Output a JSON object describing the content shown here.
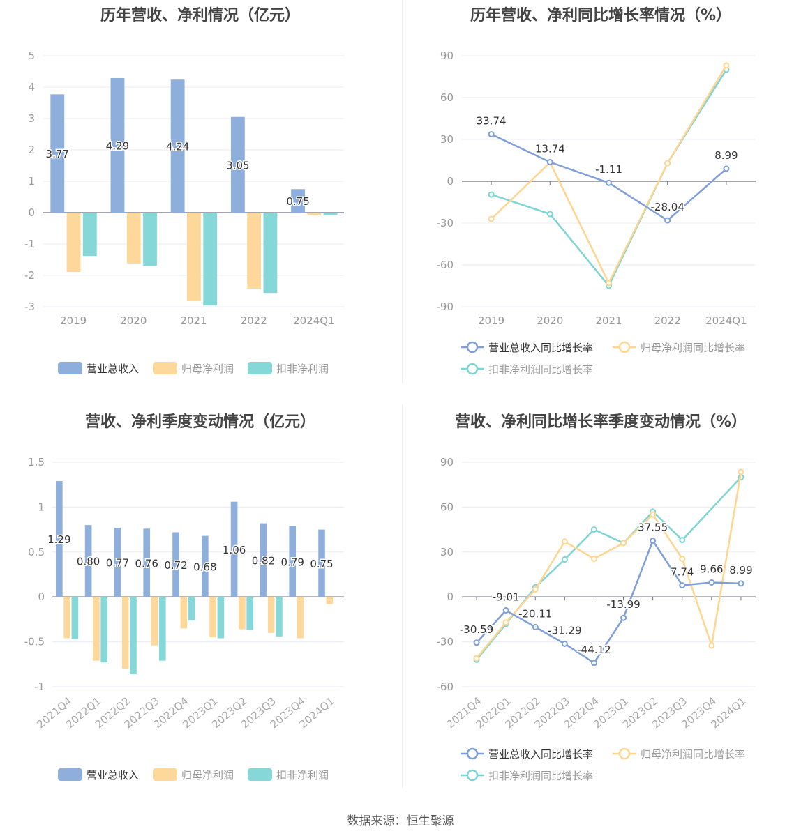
{
  "colors": {
    "revenue": "#8eaedb",
    "parent_profit": "#fdd89a",
    "deducted_profit": "#86d7d8",
    "revenue_line": "#7e9fd9",
    "parent_line": "#ffd58f",
    "deducted_line": "#7dd5d3"
  },
  "chart_data": [
    {
      "type": "bar",
      "title": "历年营收、净利情况（亿元）",
      "categories": [
        "2019",
        "2020",
        "2021",
        "2022",
        "2024Q1"
      ],
      "ylim": [
        -3,
        5
      ],
      "yticks": [
        5,
        4,
        3,
        2,
        1,
        0,
        -1,
        -2,
        -3
      ],
      "series": [
        {
          "name": "营业总收入",
          "values": [
            3.77,
            4.29,
            4.24,
            3.05,
            0.75
          ],
          "labels": [
            "3.77",
            "4.29",
            "4.24",
            "3.05",
            "0.75"
          ]
        },
        {
          "name": "归母净利润",
          "values": [
            -1.89,
            -1.62,
            -2.82,
            -2.42,
            -0.08
          ]
        },
        {
          "name": "扣非净利润",
          "values": [
            -1.38,
            -1.69,
            -2.96,
            -2.56,
            -0.08
          ]
        }
      ],
      "legend": "bottom"
    },
    {
      "type": "line",
      "title": "历年营收、净利同比增长率情况（%）",
      "categories": [
        "2019",
        "2020",
        "2021",
        "2022",
        "2024Q1"
      ],
      "ylim": [
        -90,
        90
      ],
      "yticks": [
        90,
        60,
        30,
        0,
        -30,
        -60,
        -90
      ],
      "series": [
        {
          "name": "营业总收入同比增长率",
          "values": [
            33.74,
            13.74,
            -1.11,
            -28.04,
            8.99
          ],
          "labels": [
            "33.74",
            "13.74",
            "-1.11",
            "-28.04",
            "8.99"
          ]
        },
        {
          "name": "归母净利润同比增长率",
          "values": [
            -27,
            13.5,
            -73,
            13,
            83
          ]
        },
        {
          "name": "扣非净利润同比增长率",
          "values": [
            -9.5,
            -23.5,
            -75,
            13,
            80
          ]
        }
      ],
      "legend": "bottom"
    },
    {
      "type": "bar",
      "title": "营收、净利季度变动情况（亿元）",
      "categories": [
        "2021Q4",
        "2022Q1",
        "2022Q2",
        "2022Q3",
        "2022Q4",
        "2023Q1",
        "2023Q2",
        "2023Q3",
        "2023Q4",
        "2024Q1"
      ],
      "ylim": [
        -1,
        1.5
      ],
      "yticks": [
        "1.5",
        "1",
        "0.5",
        "0",
        "-0.5",
        "-1"
      ],
      "series": [
        {
          "name": "营业总收入",
          "values": [
            1.29,
            0.8,
            0.77,
            0.76,
            0.72,
            0.68,
            1.06,
            0.82,
            0.79,
            0.75
          ],
          "labels": [
            "1.29",
            "0.80",
            "0.77",
            "0.76",
            "0.72",
            "0.68",
            "1.06",
            "0.82",
            "0.79",
            "0.75"
          ]
        },
        {
          "name": "归母净利润",
          "values": [
            -0.46,
            -0.71,
            -0.8,
            -0.54,
            -0.35,
            -0.45,
            -0.36,
            -0.4,
            -0.46,
            -0.08
          ]
        },
        {
          "name": "扣非净利润",
          "values": [
            -0.47,
            -0.73,
            -0.86,
            -0.71,
            -0.26,
            -0.46,
            -0.37,
            -0.44,
            null,
            null
          ]
        }
      ],
      "legend": "bottom"
    },
    {
      "type": "line",
      "title": "营收、净利同比增长率季度变动情况（%）",
      "categories": [
        "2021Q4",
        "2022Q1",
        "2022Q2",
        "2022Q3",
        "2022Q4",
        "2023Q1",
        "2023Q2",
        "2023Q3",
        "2023Q4",
        "2024Q1"
      ],
      "ylim": [
        -60,
        90
      ],
      "yticks": [
        90,
        60,
        30,
        0,
        -30,
        -60
      ],
      "series": [
        {
          "name": "营业总收入同比增长率",
          "values": [
            -30.59,
            -9.01,
            -20.11,
            -31.29,
            -44.12,
            -13.99,
            37.55,
            7.74,
            9.66,
            8.99
          ],
          "labels": [
            "-30.59",
            "-9.01",
            "-20.11",
            "-31.29",
            "-44.12",
            "-13.99",
            "37.55",
            "7.74",
            "9.66",
            "8.99"
          ]
        },
        {
          "name": "归母净利润同比增长率",
          "values": [
            -41,
            -17,
            5,
            37,
            25.5,
            36,
            55,
            25.5,
            -32.5,
            83.5
          ]
        },
        {
          "name": "扣非净利润同比增长率",
          "values": [
            -42,
            -18,
            6.5,
            25,
            45,
            36,
            57,
            38,
            null,
            80
          ]
        }
      ],
      "legend": "bottom"
    }
  ],
  "source": "数据来源：恒生聚源"
}
